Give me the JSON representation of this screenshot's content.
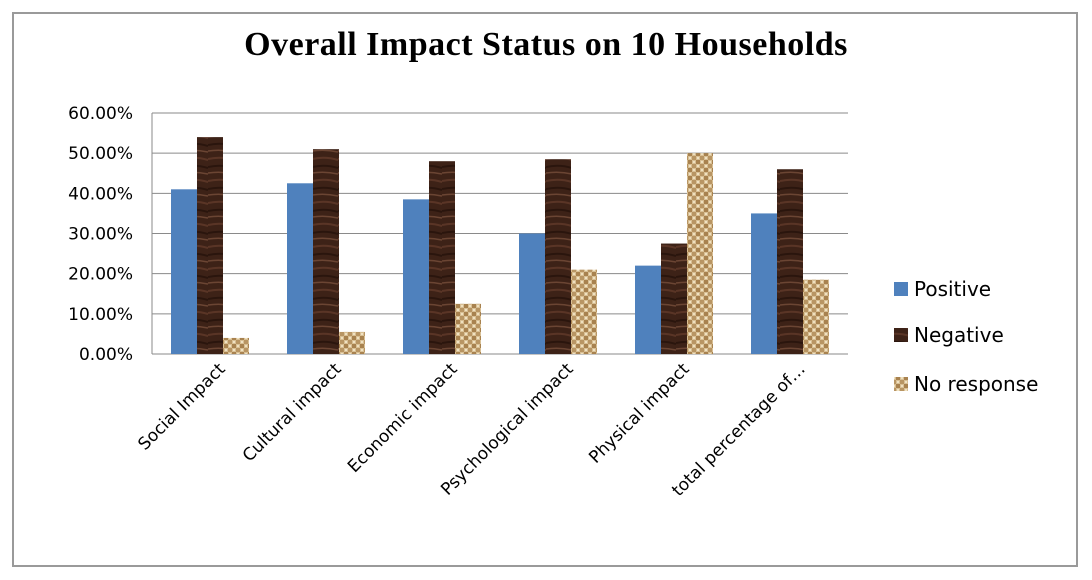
{
  "chart_data": {
    "type": "bar",
    "title": "Overall Impact Status on 10 Households",
    "categories": [
      "Social Impact",
      "Cultural impact",
      "Economic impact",
      "Psychological impact",
      "Physical impact",
      "total percentage of…"
    ],
    "series": [
      {
        "name": "Positive",
        "color": "#4f81bd",
        "values": [
          0.41,
          0.425,
          0.385,
          0.3,
          0.22,
          0.35
        ]
      },
      {
        "name": "Negative",
        "color": "#3d2217",
        "values": [
          0.54,
          0.51,
          0.48,
          0.485,
          0.275,
          0.46
        ]
      },
      {
        "name": "No response",
        "color": "#c9a876",
        "values": [
          0.04,
          0.055,
          0.125,
          0.21,
          0.5,
          0.185
        ]
      }
    ],
    "ylim": [
      0,
      0.6
    ],
    "yticks": [
      "0.00%",
      "10.00%",
      "20.00%",
      "30.00%",
      "40.00%",
      "50.00%",
      "60.00%"
    ],
    "legend_position": "right",
    "grid": true
  }
}
